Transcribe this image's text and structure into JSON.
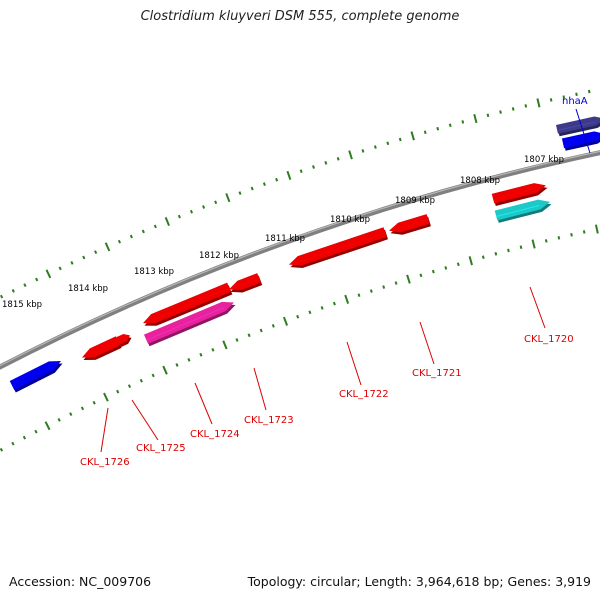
{
  "header": {
    "title": "Clostridium kluyveri DSM 555, complete genome"
  },
  "footer": {
    "accession": "Accession: NC_009706",
    "topology": "Topology: circular; Length: 3,964,618 bp; Genes: 3,919"
  },
  "colors": {
    "backbone": "#808080",
    "tick": "#2e7d1e",
    "gene_red": "#ee0000",
    "gene_blue": "#0000ee",
    "gene_navy": "#3d3a8a",
    "gene_magenta": "#e8229c",
    "gene_cyan": "#1cc8c8",
    "label_red": "#dd0000",
    "label_blue": "#0000cc"
  },
  "kbp_labels": [
    "1815 kbp",
    "1814 kbp",
    "1813 kbp",
    "1812 kbp",
    "1811 kbp",
    "1810 kbp",
    "1809 kbp",
    "1808 kbp",
    "1807 kbp"
  ],
  "gene_labels": [
    "CKL_1726",
    "CKL_1725",
    "CKL_1724",
    "CKL_1723",
    "CKL_1722",
    "CKL_1721",
    "CKL_1720"
  ],
  "forward_labels": [
    "nhaA"
  ]
}
